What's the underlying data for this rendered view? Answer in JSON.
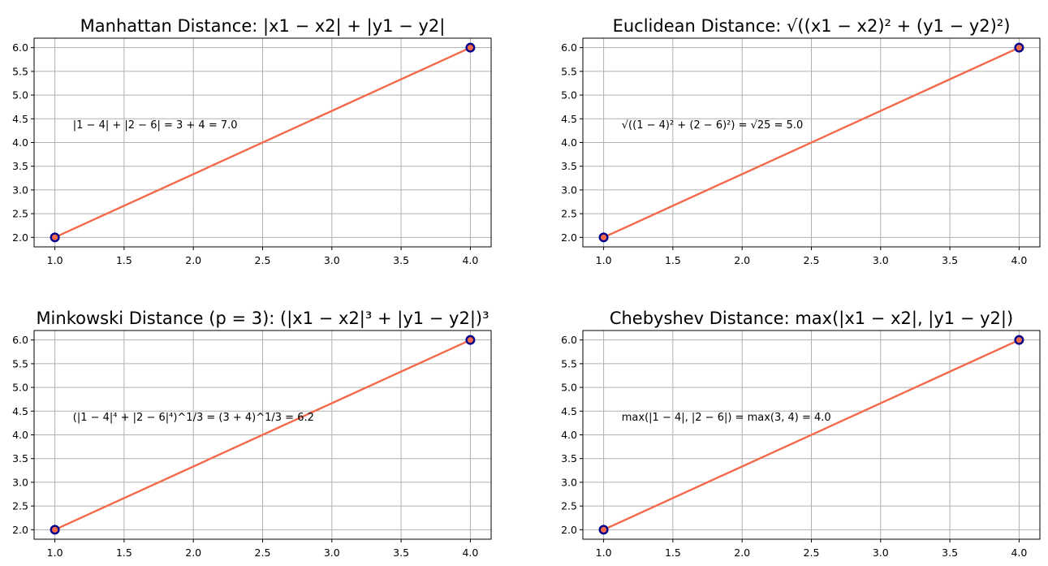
{
  "chart_data": [
    {
      "type": "line",
      "title": "Manhattan Distance: |x1 − x2| + |y1 − y2|",
      "x": [
        1,
        4
      ],
      "y": [
        2,
        6
      ],
      "xlim": [
        0.85,
        4.15
      ],
      "ylim": [
        1.8,
        6.2
      ],
      "xticks": [
        "1.0",
        "1.5",
        "2.0",
        "2.5",
        "3.0",
        "3.5",
        "4.0"
      ],
      "yticks": [
        "2.0",
        "2.5",
        "3.0",
        "3.5",
        "4.0",
        "4.5",
        "5.0",
        "5.5",
        "6.0"
      ],
      "annotation": {
        "text": "|1 − 4| + |2 − 6| = 3 + 4 = 7.0",
        "x": 1.13,
        "y": 4.3
      },
      "grid": true
    },
    {
      "type": "line",
      "title": "Euclidean Distance: √((x1 − x2)² + (y1 − y2)²)",
      "x": [
        1,
        4
      ],
      "y": [
        2,
        6
      ],
      "xlim": [
        0.85,
        4.15
      ],
      "ylim": [
        1.8,
        6.2
      ],
      "xticks": [
        "1.0",
        "1.5",
        "2.0",
        "2.5",
        "3.0",
        "3.5",
        "4.0"
      ],
      "yticks": [
        "2.0",
        "2.5",
        "3.0",
        "3.5",
        "4.0",
        "4.5",
        "5.0",
        "5.5",
        "6.0"
      ],
      "annotation": {
        "text": "√((1 − 4)² + (2 − 6)²) = √25 = 5.0",
        "x": 1.13,
        "y": 4.3
      },
      "grid": true
    },
    {
      "type": "line",
      "title": "Minkowski Distance (p = 3): (|x1 − x2|³ + |y1 − y2|)³",
      "x": [
        1,
        4
      ],
      "y": [
        2,
        6
      ],
      "xlim": [
        0.85,
        4.15
      ],
      "ylim": [
        1.8,
        6.2
      ],
      "xticks": [
        "1.0",
        "1.5",
        "2.0",
        "2.5",
        "3.0",
        "3.5",
        "4.0"
      ],
      "yticks": [
        "2.0",
        "2.5",
        "3.0",
        "3.5",
        "4.0",
        "4.5",
        "5.0",
        "5.5",
        "6.0"
      ],
      "annotation": {
        "text": "(|1 − 4|⁴ + |2 − 6|⁴)^1/3 = (3 + 4)^1/3 = 6.2",
        "x": 1.13,
        "y": 4.3
      },
      "grid": true
    },
    {
      "type": "line",
      "title": "Chebyshev Distance: max(|x1 − x2|, |y1 − y2|)",
      "x": [
        1,
        4
      ],
      "y": [
        2,
        6
      ],
      "xlim": [
        0.85,
        4.15
      ],
      "ylim": [
        1.8,
        6.2
      ],
      "xticks": [
        "1.0",
        "1.5",
        "2.0",
        "2.5",
        "3.0",
        "3.5",
        "4.0"
      ],
      "yticks": [
        "2.0",
        "2.5",
        "3.0",
        "3.5",
        "4.0",
        "4.5",
        "5.0",
        "5.5",
        "6.0"
      ],
      "annotation": {
        "text": "max(|1 − 4|, |2 − 6|) = max(3, 4) = 4.0",
        "x": 1.13,
        "y": 4.3
      },
      "grid": true
    }
  ],
  "colors": {
    "line": "#f26a4b",
    "point_edge": "#00008b",
    "point_fill": "#f26a4b",
    "grid": "#b0b0b0"
  }
}
